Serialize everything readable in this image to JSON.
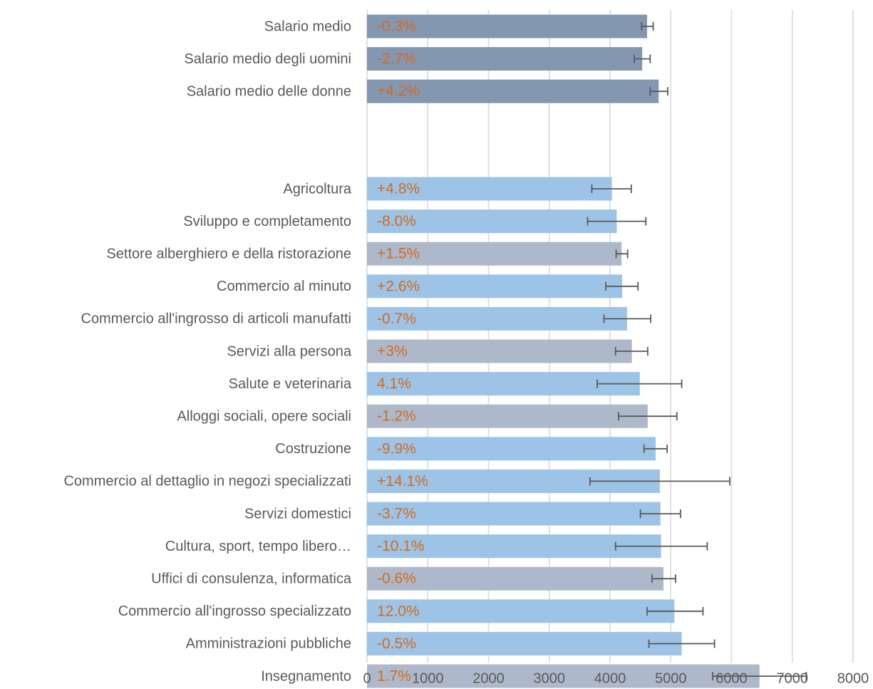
{
  "chart_data": {
    "type": "bar",
    "orientation": "horizontal",
    "title": "",
    "xlabel": "",
    "ylabel": "",
    "xlim": [
      0,
      8000
    ],
    "x_ticks": [
      "0",
      "1000",
      "2000",
      "3000",
      "4000",
      "5000",
      "6000",
      "7000",
      "8000"
    ],
    "grid": true,
    "legend": "none",
    "colors": {
      "summary": "#8497b0",
      "light-blue": "#9dc3e6",
      "grey-blue": "#adb9ca",
      "label": "#d36a1f",
      "error": "#595959"
    },
    "bars": [
      {
        "category": "Salario medio",
        "value": 4610,
        "err_low": 4520,
        "err_high": 4710,
        "label": "-0.3%",
        "color": "summary",
        "group": 0
      },
      {
        "category": "Salario medio degli uomini",
        "value": 4530,
        "err_low": 4400,
        "err_high": 4660,
        "label": "-2.7%",
        "color": "summary",
        "group": 0
      },
      {
        "category": "Salario medio delle donne",
        "value": 4800,
        "err_low": 4660,
        "err_high": 4950,
        "label": "+4.2%",
        "color": "summary",
        "group": 0
      },
      {
        "category": "Agricoltura",
        "value": 4030,
        "err_low": 3700,
        "err_high": 4350,
        "label": "+4.8%",
        "color": "light-blue",
        "group": 1
      },
      {
        "category": "Sviluppo e completamento",
        "value": 4110,
        "err_low": 3630,
        "err_high": 4590,
        "label": "-8.0%",
        "color": "light-blue",
        "group": 1
      },
      {
        "category": "Settore alberghiero e della ristorazione",
        "value": 4190,
        "err_low": 4100,
        "err_high": 4290,
        "label": "+1.5%",
        "color": "grey-blue",
        "group": 1
      },
      {
        "category": "Commercio al minuto",
        "value": 4200,
        "err_low": 3930,
        "err_high": 4460,
        "label": "+2.6%",
        "color": "light-blue",
        "group": 1
      },
      {
        "category": "Commercio all'ingrosso di articoli manufatti",
        "value": 4280,
        "err_low": 3900,
        "err_high": 4670,
        "label": "-0.7%",
        "color": "light-blue",
        "group": 1
      },
      {
        "category": "Servizi alla persona",
        "value": 4360,
        "err_low": 4090,
        "err_high": 4620,
        "label": "+3%",
        "color": "grey-blue",
        "group": 1
      },
      {
        "category": "Salute e veterinaria",
        "value": 4490,
        "err_low": 3790,
        "err_high": 5180,
        "label": "4.1%",
        "color": "light-blue",
        "group": 1
      },
      {
        "category": "Alloggi sociali, opere sociali",
        "value": 4620,
        "err_low": 4140,
        "err_high": 5100,
        "label": "-1.2%",
        "color": "grey-blue",
        "group": 1
      },
      {
        "category": "Costruzione",
        "value": 4750,
        "err_low": 4560,
        "err_high": 4940,
        "label": "-9.9%",
        "color": "light-blue",
        "group": 1
      },
      {
        "category": "Commercio al dettaglio in negozi specializzati",
        "value": 4820,
        "err_low": 3670,
        "err_high": 5970,
        "label": "+14.1%",
        "color": "light-blue",
        "group": 1
      },
      {
        "category": "Servizi domestici",
        "value": 4830,
        "err_low": 4500,
        "err_high": 5160,
        "label": "-3.7%",
        "color": "light-blue",
        "group": 1
      },
      {
        "category": "Cultura, sport, tempo libero…",
        "value": 4840,
        "err_low": 4090,
        "err_high": 5600,
        "label": "-10.1%",
        "color": "light-blue",
        "group": 1
      },
      {
        "category": "Uffici di consulenza, informatica",
        "value": 4880,
        "err_low": 4690,
        "err_high": 5080,
        "label": "-0.6%",
        "color": "grey-blue",
        "group": 1
      },
      {
        "category": "Commercio all'ingrosso specializzato",
        "value": 5060,
        "err_low": 4610,
        "err_high": 5530,
        "label": "12.0%",
        "color": "light-blue",
        "group": 1
      },
      {
        "category": "Amministrazioni pubbliche",
        "value": 5180,
        "err_low": 4640,
        "err_high": 5720,
        "label": "-0.5%",
        "color": "light-blue",
        "group": 1
      },
      {
        "category": "Insegnamento",
        "value": 6460,
        "err_low": 5690,
        "err_high": 7230,
        "label": "1.7%",
        "color": "grey-blue",
        "group": 1
      }
    ]
  }
}
